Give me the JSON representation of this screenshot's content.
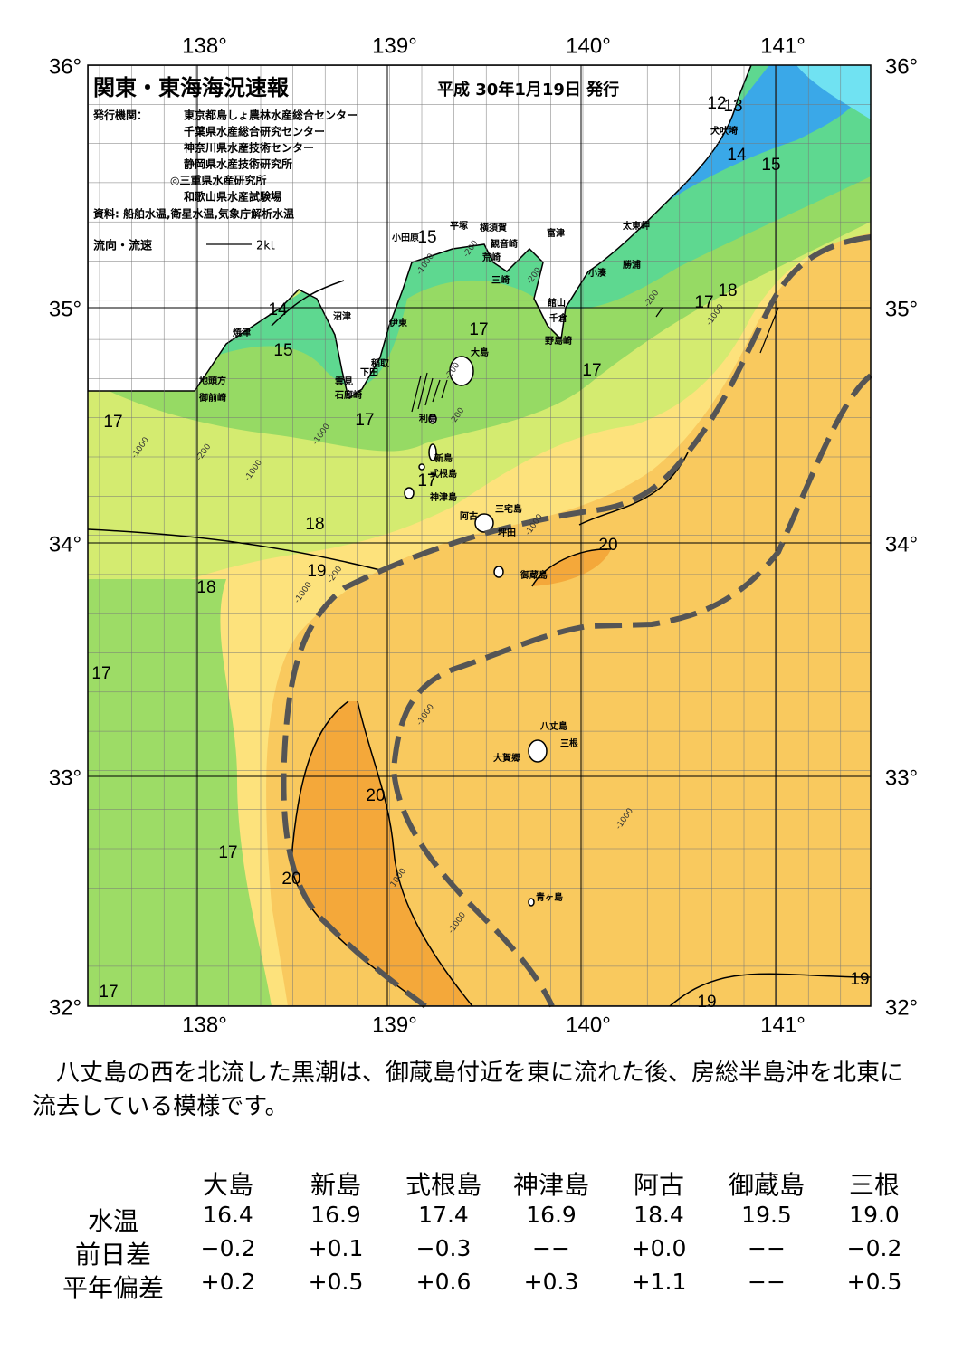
{
  "map": {
    "title": "関東・東海海況速報",
    "date": "平成 30年1月19日 発行",
    "publishers_label": "発行機関：",
    "publishers": [
      "東京都島しょ農林水産総合センター",
      "千葉県水産総合研究センター",
      "神奈川県水産技術センター",
      "静岡県水産技術研究所",
      "◎三重県水産研究所",
      "和歌山県水産試験場"
    ],
    "source": "資料: 船舶水温,衛星水温,気象庁解析水温",
    "legend_label": "流向・流速",
    "legend_speed": "2kt",
    "lon_labels": [
      "138°",
      "139°",
      "140°",
      "141°"
    ],
    "lat_labels": [
      "36°",
      "35°",
      "34°",
      "33°",
      "32°"
    ],
    "places": [
      "犬吠埼",
      "太東岬",
      "富津",
      "勝浦",
      "小湊",
      "横須賀",
      "平塚",
      "観音崎",
      "小田原",
      "荒崎",
      "三崎",
      "館山",
      "千倉",
      "野島崎",
      "沼津",
      "伊東",
      "焼津",
      "大島",
      "稲取",
      "下田",
      "雲見",
      "地頭方",
      "石廊崎",
      "御前崎",
      "利島",
      "新島",
      "式根島",
      "神津島",
      "三宅島",
      "阿古",
      "坪田",
      "御蔵島",
      "八丈島",
      "三根",
      "大賀郷",
      "青ヶ島"
    ],
    "isotherm_labels": [
      "12",
      "13",
      "14",
      "15",
      "15",
      "17",
      "18",
      "14",
      "15",
      "17",
      "17",
      "17",
      "17",
      "17",
      "18",
      "20",
      "19",
      "18",
      "17",
      "20",
      "17",
      "20",
      "17",
      "19",
      "19"
    ],
    "depth_labels": [
      "-200",
      "-1000",
      "-200",
      "-200",
      "-1000",
      "-200",
      "-1000",
      "-200",
      "-1000",
      "-200",
      "-1000",
      "-1000",
      "-1000",
      "-200",
      "-1000",
      "1000",
      "-1000",
      "-1000"
    ]
  },
  "description": "　八丈島の西を北流した黒潮は、御蔵島付近を東に流れた後、房総半島沖を北東に流去している模様です。",
  "table": {
    "header": [
      "大島",
      "新島",
      "式根島",
      "神津島",
      "阿古",
      "御蔵島",
      "三根"
    ],
    "rows": [
      [
        "水温",
        "16.4",
        "16.9",
        "17.4",
        "16.9",
        "18.4",
        "19.5",
        "19.0"
      ],
      [
        "前日差",
        "−0.2",
        "+0.1",
        "−0.3",
        "−−",
        "+0.0",
        "−−",
        "−0.2"
      ],
      [
        "平年偏差",
        "+0.2",
        "+0.5",
        "+0.6",
        "+0.3",
        "+1.1",
        "−−",
        "+0.5"
      ]
    ]
  }
}
